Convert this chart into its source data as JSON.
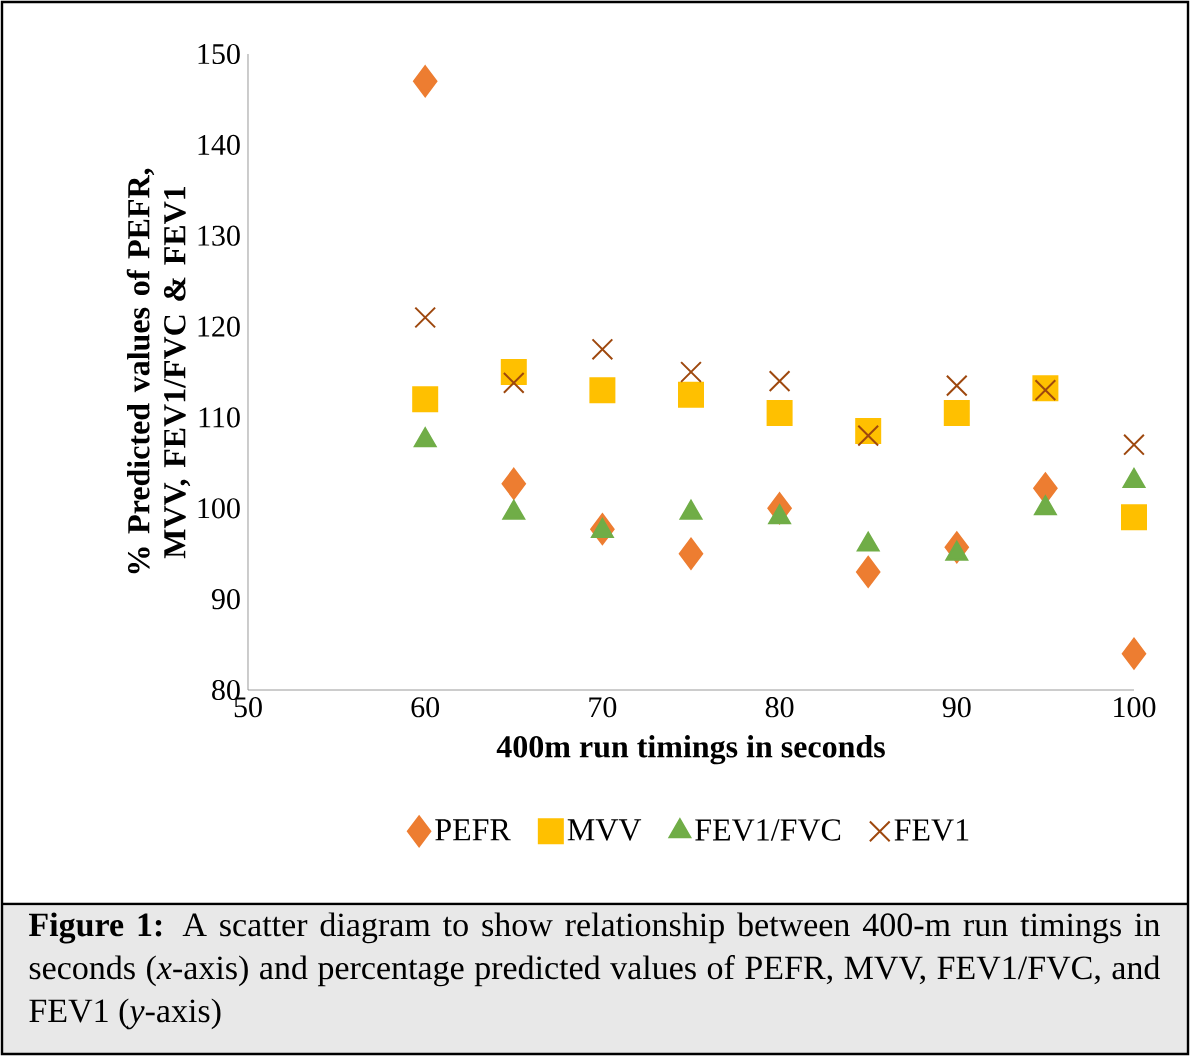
{
  "chart_data": {
    "type": "scatter",
    "xlabel": "400m run timings in seconds",
    "ylabel": "% Predicted values of PEFR, MVV, FEV1/FVC & FEV1",
    "x": [
      60,
      65,
      70,
      75,
      80,
      85,
      90,
      95,
      100
    ],
    "xlim": [
      50,
      100
    ],
    "xticks": [
      50,
      60,
      70,
      80,
      90,
      100
    ],
    "ylim": [
      80,
      150
    ],
    "yticks": [
      80,
      90,
      100,
      110,
      120,
      130,
      140,
      150
    ],
    "grid": false,
    "legend": "bottom",
    "series": [
      {
        "name": "PEFR",
        "color": "#ed7d31",
        "marker": "diamond",
        "values": [
          147,
          102.7,
          97.7,
          95,
          100,
          93,
          95.7,
          102.2,
          84
        ]
      },
      {
        "name": "MVV",
        "color": "#ffc000",
        "marker": "square",
        "values": [
          112,
          115,
          113,
          112.5,
          110.5,
          108.5,
          110.5,
          113.2,
          99
        ]
      },
      {
        "name": "FEV1/FVC",
        "color": "#70ad47",
        "marker": "triangle",
        "values": [
          107.5,
          99.5,
          97.5,
          99.5,
          99,
          96,
          95,
          100,
          103
        ]
      },
      {
        "name": "FEV1",
        "color": "#9e480e",
        "marker": "cross",
        "values": [
          121,
          113.8,
          117.5,
          115,
          114,
          108,
          113.5,
          113,
          107
        ]
      }
    ],
    "annotations": [
      "**Figure 1:** A scatter diagram to show relationship between 400-m run timings in seconds (*x*-axis) and percentage predicted values of PEFR, MVV, FEV1/FVC, and FEV1 (*y*-axis)"
    ]
  }
}
